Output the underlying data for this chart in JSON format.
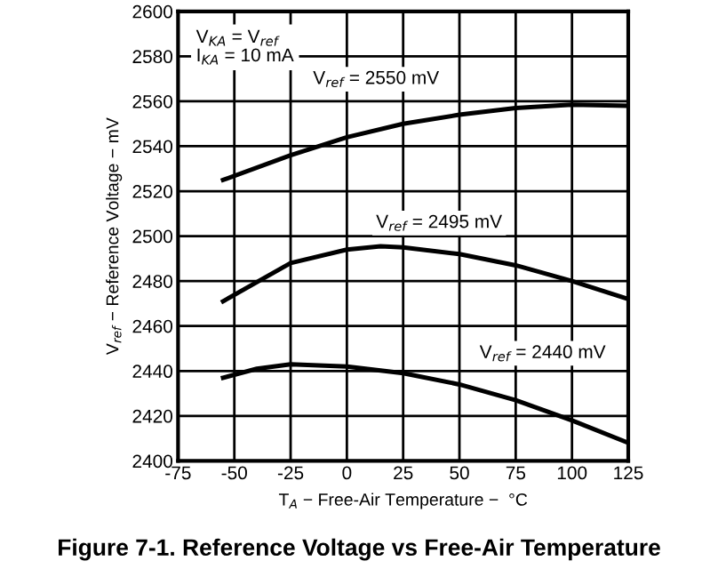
{
  "chart_data": {
    "type": "line",
    "title": "Figure 7-1. Reference Voltage vs Free-Air Temperature",
    "xlabel": "T$_{A}$ − Free-Air Temperature −  °C",
    "ylabel": "V$_{ref}$ − Reference Voltage − mV",
    "series": [
      {
        "color": "#000000",
        "x": [
          -55,
          -25,
          0,
          25,
          50,
          75,
          100,
          125
        ],
        "values": [
          2525,
          2536,
          2544,
          2550,
          2554,
          2557,
          2558.5,
          2558
        ]
      },
      {
        "color": "#000000",
        "x": [
          -55,
          -25,
          0,
          15,
          25,
          50,
          75,
          100,
          125
        ],
        "values": [
          2471,
          2488,
          2494,
          2495.5,
          2495,
          2492,
          2487,
          2480,
          2472
        ]
      },
      {
        "color": "#000000",
        "x": [
          -55,
          -40,
          -25,
          0,
          25,
          50,
          75,
          100,
          125
        ],
        "values": [
          2437,
          2441,
          2443,
          2442,
          2439,
          2434,
          2427,
          2418,
          2408
        ]
      }
    ],
    "annotations": [
      "V$_{KA}$ = V$_{ref}$\nI$_{KA}$ = 10 mA",
      "V$_{ref}$ = 2550 mV",
      "V$_{ref}$ = 2495 mV",
      "V$_{ref}$ = 2440 mV"
    ],
    "xlim": [
      -75,
      125
    ],
    "xticks": [
      -75,
      -50,
      -25,
      0,
      25,
      50,
      75,
      100,
      125
    ],
    "ylim": [
      2400,
      2600
    ],
    "yticks": [
      2400,
      2420,
      2440,
      2460,
      2480,
      2500,
      2520,
      2540,
      2560,
      2580,
      2600
    ],
    "grid": true,
    "line_style": "solid",
    "marker": "none"
  }
}
